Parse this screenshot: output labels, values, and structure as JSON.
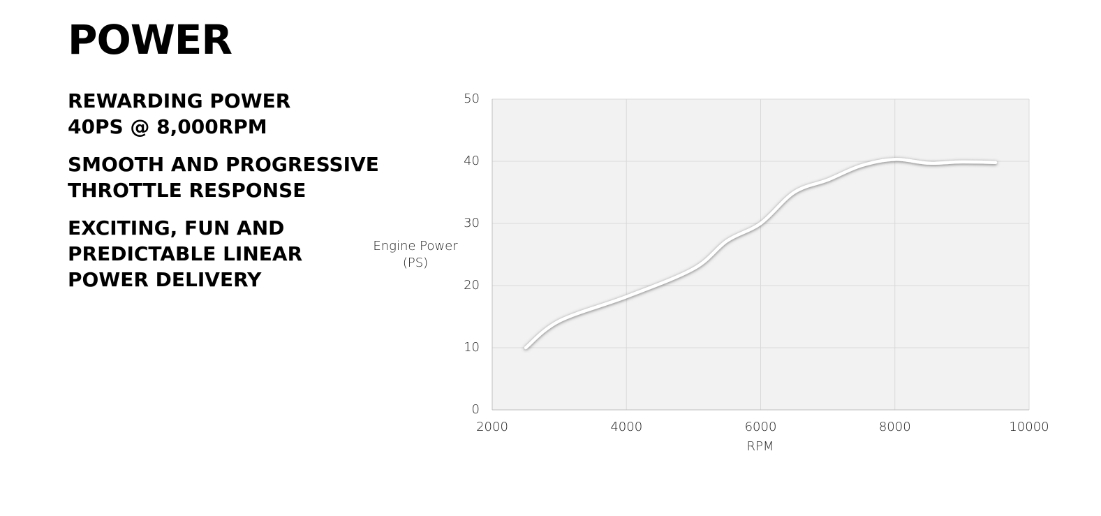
{
  "heading": "POWER",
  "features": [
    [
      "REWARDING POWER",
      "40PS @ 8,000RPM"
    ],
    [
      "SMOOTH AND PROGRESSIVE",
      "THROTTLE RESPONSE"
    ],
    [
      "EXCITING, FUN AND",
      "PREDICTABLE LINEAR",
      "POWER DELIVERY"
    ]
  ],
  "chart_data": {
    "type": "line",
    "x_label": "RPM",
    "y_label": [
      "Engine Power",
      "(PS)"
    ],
    "x": [
      2500,
      3000,
      4000,
      5000,
      5500,
      6000,
      6500,
      7000,
      7500,
      8000,
      8500,
      9000,
      9500
    ],
    "series": [
      {
        "color": "#ffffff",
        "values": [
          10,
          14.3,
          18.2,
          22.7,
          27.2,
          30,
          35,
          37,
          39.3,
          40.3,
          39.7,
          39.9,
          39.8
        ]
      }
    ],
    "xlim": [
      2000,
      10000
    ],
    "xticks": [
      2000,
      4000,
      6000,
      8000,
      10000
    ],
    "ylim": [
      0,
      50
    ],
    "yticks": [
      0,
      10,
      20,
      30,
      40,
      50
    ],
    "grid": true
  }
}
